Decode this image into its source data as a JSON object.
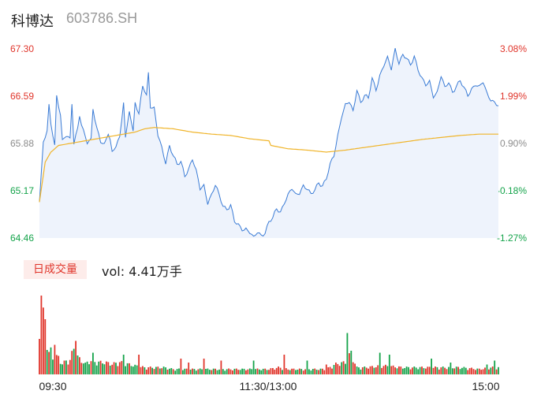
{
  "header": {
    "name": "科博达",
    "code": "603786.SH"
  },
  "volume_panel": {
    "badge": "日成交量",
    "readout_label": "vol:",
    "readout_value": "4.41万手"
  },
  "colors": {
    "up": "#e0352b",
    "down": "#14a34a",
    "neutral": "#8c8c8c",
    "price_line": "#3a7bd5",
    "price_fill": "#eef3fc",
    "avg_line": "#f0b429"
  },
  "chart_data": [
    {
      "type": "line",
      "title": "",
      "xlabel": "",
      "ylabel": "",
      "ylim": [
        64.46,
        67.3
      ],
      "y_ticks": [
        67.3,
        66.59,
        65.88,
        65.17,
        64.46
      ],
      "y_tick_labels": [
        "67.30",
        "66.59",
        "65.88",
        "65.17",
        "64.46"
      ],
      "pct_ticks": [
        3.08,
        1.99,
        0.9,
        -0.18,
        -1.27
      ],
      "pct_tick_labels": [
        "3.08%",
        "1.99%",
        "0.90%",
        "-0.18%",
        "-1.27%"
      ],
      "x_tick_labels": [
        "09:30",
        "11:30/13:00",
        "15:00"
      ],
      "minutes": 241,
      "price_anchors": [
        [
          0,
          65.0
        ],
        [
          2,
          65.9
        ],
        [
          4,
          66.05
        ],
        [
          5,
          66.45
        ],
        [
          6,
          66.2
        ],
        [
          8,
          65.85
        ],
        [
          9,
          66.6
        ],
        [
          11,
          66.3
        ],
        [
          12,
          65.9
        ],
        [
          14,
          66.0
        ],
        [
          16,
          65.95
        ],
        [
          17,
          66.5
        ],
        [
          18,
          65.9
        ],
        [
          20,
          66.1
        ],
        [
          21,
          66.3
        ],
        [
          22,
          66.15
        ],
        [
          23,
          66.05
        ],
        [
          25,
          65.9
        ],
        [
          27,
          65.95
        ],
        [
          28,
          66.42
        ],
        [
          30,
          66.1
        ],
        [
          32,
          65.9
        ],
        [
          34,
          65.85
        ],
        [
          36,
          66.05
        ],
        [
          37,
          65.95
        ],
        [
          38,
          65.75
        ],
        [
          40,
          65.85
        ],
        [
          42,
          65.95
        ],
        [
          44,
          66.5
        ],
        [
          45,
          65.95
        ],
        [
          47,
          66.4
        ],
        [
          49,
          66.05
        ],
        [
          50,
          66.5
        ],
        [
          52,
          66.3
        ],
        [
          54,
          66.75
        ],
        [
          56,
          66.6
        ],
        [
          57,
          66.95
        ],
        [
          58,
          66.45
        ],
        [
          60,
          66.4
        ],
        [
          62,
          66.0
        ],
        [
          64,
          65.8
        ],
        [
          66,
          65.6
        ],
        [
          68,
          65.85
        ],
        [
          70,
          65.7
        ],
        [
          72,
          65.55
        ],
        [
          74,
          65.6
        ],
        [
          76,
          65.4
        ],
        [
          78,
          65.5
        ],
        [
          80,
          65.65
        ],
        [
          82,
          65.45
        ],
        [
          84,
          65.2
        ],
        [
          86,
          65.25
        ],
        [
          88,
          65.0
        ],
        [
          90,
          65.1
        ],
        [
          92,
          65.25
        ],
        [
          94,
          65.1
        ],
        [
          96,
          64.95
        ],
        [
          98,
          64.9
        ],
        [
          100,
          64.95
        ],
        [
          102,
          64.7
        ],
        [
          104,
          64.65
        ],
        [
          106,
          64.6
        ],
        [
          108,
          64.6
        ],
        [
          110,
          64.55
        ],
        [
          112,
          64.45
        ],
        [
          114,
          64.55
        ],
        [
          116,
          64.5
        ],
        [
          118,
          64.55
        ],
        [
          120,
          64.7
        ],
        [
          122,
          64.75
        ],
        [
          124,
          64.9
        ],
        [
          126,
          64.85
        ],
        [
          128,
          65.0
        ],
        [
          130,
          65.1
        ],
        [
          132,
          65.2
        ],
        [
          134,
          65.1
        ],
        [
          136,
          65.15
        ],
        [
          138,
          65.25
        ],
        [
          140,
          65.2
        ],
        [
          142,
          65.1
        ],
        [
          144,
          65.18
        ],
        [
          146,
          65.3
        ],
        [
          148,
          65.25
        ],
        [
          150,
          65.35
        ],
        [
          152,
          65.55
        ],
        [
          154,
          65.7
        ],
        [
          156,
          66.0
        ],
        [
          158,
          66.3
        ],
        [
          160,
          66.45
        ],
        [
          162,
          66.5
        ],
        [
          164,
          66.35
        ],
        [
          166,
          66.7
        ],
        [
          168,
          66.5
        ],
        [
          170,
          66.6
        ],
        [
          172,
          66.55
        ],
        [
          174,
          66.85
        ],
        [
          176,
          66.7
        ],
        [
          178,
          66.9
        ],
        [
          180,
          67.05
        ],
        [
          182,
          67.15
        ],
        [
          184,
          67.0
        ],
        [
          186,
          67.3
        ],
        [
          188,
          67.1
        ],
        [
          190,
          67.2
        ],
        [
          192,
          67.15
        ],
        [
          194,
          67.05
        ],
        [
          196,
          67.2
        ],
        [
          198,
          67.0
        ],
        [
          200,
          66.85
        ],
        [
          202,
          66.75
        ],
        [
          204,
          66.8
        ],
        [
          206,
          66.6
        ],
        [
          208,
          66.65
        ],
        [
          210,
          66.9
        ],
        [
          212,
          66.7
        ],
        [
          214,
          66.8
        ],
        [
          216,
          66.65
        ],
        [
          218,
          66.75
        ],
        [
          220,
          66.82
        ],
        [
          222,
          66.7
        ],
        [
          224,
          66.6
        ],
        [
          226,
          66.7
        ],
        [
          228,
          66.78
        ],
        [
          230,
          66.72
        ],
        [
          232,
          66.8
        ],
        [
          234,
          66.62
        ],
        [
          236,
          66.55
        ],
        [
          238,
          66.5
        ],
        [
          240,
          66.45
        ]
      ],
      "avg_anchors": [
        [
          0,
          65.0
        ],
        [
          3,
          65.6
        ],
        [
          6,
          65.75
        ],
        [
          10,
          65.85
        ],
        [
          20,
          65.9
        ],
        [
          30,
          65.95
        ],
        [
          40,
          66.0
        ],
        [
          50,
          66.05
        ],
        [
          55,
          66.1
        ],
        [
          60,
          66.12
        ],
        [
          70,
          66.1
        ],
        [
          80,
          66.05
        ],
        [
          90,
          66.02
        ],
        [
          100,
          66.0
        ],
        [
          110,
          65.95
        ],
        [
          120,
          65.92
        ],
        [
          121,
          65.85
        ],
        [
          130,
          65.8
        ],
        [
          140,
          65.78
        ],
        [
          150,
          65.75
        ],
        [
          160,
          65.78
        ],
        [
          170,
          65.82
        ],
        [
          180,
          65.86
        ],
        [
          190,
          65.9
        ],
        [
          200,
          65.94
        ],
        [
          210,
          65.97
        ],
        [
          220,
          66.0
        ],
        [
          230,
          66.02
        ],
        [
          240,
          66.02
        ]
      ]
    },
    {
      "type": "bar",
      "title": "",
      "xlabel": "",
      "ylabel": "",
      "unit": "万手",
      "ylim": [
        0,
        0.2
      ],
      "note_values": "per-minute volume; first bars largest",
      "value_anchors": [
        [
          0,
          0.15
        ],
        [
          1,
          0.2
        ],
        [
          2,
          0.17
        ],
        [
          3,
          0.13
        ],
        [
          4,
          0.09
        ],
        [
          5,
          0.06
        ],
        [
          6,
          0.07
        ],
        [
          7,
          0.05
        ],
        [
          8,
          0.05
        ],
        [
          10,
          0.05
        ],
        [
          12,
          0.03
        ],
        [
          14,
          0.04
        ],
        [
          16,
          0.04
        ],
        [
          18,
          0.08
        ],
        [
          20,
          0.05
        ],
        [
          22,
          0.04
        ],
        [
          24,
          0.03
        ],
        [
          26,
          0.04
        ],
        [
          30,
          0.035
        ],
        [
          34,
          0.035
        ],
        [
          38,
          0.03
        ],
        [
          42,
          0.035
        ],
        [
          46,
          0.03
        ],
        [
          50,
          0.025
        ],
        [
          55,
          0.02
        ],
        [
          60,
          0.02
        ],
        [
          65,
          0.02
        ],
        [
          70,
          0.015
        ],
        [
          80,
          0.015
        ],
        [
          90,
          0.015
        ],
        [
          100,
          0.015
        ],
        [
          110,
          0.015
        ],
        [
          120,
          0.015
        ],
        [
          125,
          0.02
        ],
        [
          130,
          0.015
        ],
        [
          140,
          0.015
        ],
        [
          150,
          0.015
        ],
        [
          155,
          0.03
        ],
        [
          160,
          0.035
        ],
        [
          162,
          0.055
        ],
        [
          164,
          0.045
        ],
        [
          166,
          0.02
        ],
        [
          170,
          0.02
        ],
        [
          180,
          0.025
        ],
        [
          190,
          0.02
        ],
        [
          200,
          0.02
        ],
        [
          210,
          0.02
        ],
        [
          220,
          0.02
        ],
        [
          230,
          0.015
        ],
        [
          236,
          0.02
        ],
        [
          240,
          0.02
        ]
      ],
      "spikes": [
        [
          1,
          0.2
        ],
        [
          3,
          0.14
        ],
        [
          8,
          0.075
        ],
        [
          19,
          0.085
        ],
        [
          28,
          0.055
        ],
        [
          44,
          0.05
        ],
        [
          52,
          0.05
        ],
        [
          74,
          0.04
        ],
        [
          78,
          0.03
        ],
        [
          86,
          0.04
        ],
        [
          95,
          0.035
        ],
        [
          112,
          0.035
        ],
        [
          128,
          0.05
        ],
        [
          140,
          0.035
        ],
        [
          150,
          0.025
        ],
        [
          161,
          0.105
        ],
        [
          163,
          0.06
        ],
        [
          178,
          0.055
        ],
        [
          183,
          0.05
        ],
        [
          205,
          0.04
        ],
        [
          215,
          0.03
        ],
        [
          234,
          0.025
        ],
        [
          238,
          0.035
        ]
      ]
    }
  ]
}
